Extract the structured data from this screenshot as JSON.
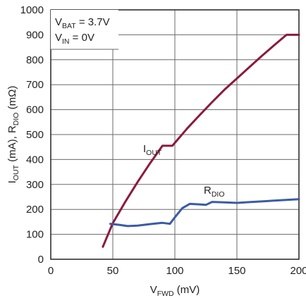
{
  "chart_data": {
    "type": "line",
    "xlabel": {
      "main": "V",
      "sub": "FWD",
      "unit": " (mV)"
    },
    "ylabel": {
      "p1": "I",
      "s1": "OUT",
      "p2": " (mA), R",
      "s2": "DIO",
      "p3": " (mΩ)"
    },
    "xlim": [
      0,
      200
    ],
    "ylim": [
      0,
      1000
    ],
    "xticks": [
      0,
      50,
      100,
      150,
      200
    ],
    "yticks": [
      0,
      100,
      200,
      300,
      400,
      500,
      600,
      700,
      800,
      900,
      1000
    ],
    "grid": true,
    "conditions": [
      {
        "main": "V",
        "sub": "BAT",
        "rest": " = 3.7V"
      },
      {
        "main": "V",
        "sub": "IN",
        "rest": " = 0V"
      }
    ],
    "series": [
      {
        "label_main": "I",
        "label_sub": "OUT",
        "color": "#8b1a3c",
        "x": [
          42,
          50,
          60,
          70,
          80,
          90,
          98,
          110,
          120,
          130,
          140,
          150,
          160,
          170,
          180,
          190,
          200
        ],
        "y": [
          50,
          145,
          230,
          310,
          385,
          455,
          455,
          525,
          578,
          630,
          680,
          725,
          770,
          815,
          858,
          900,
          900
        ]
      },
      {
        "label_main": "R",
        "label_sub": "DIO",
        "color": "#3b5ba5",
        "x": [
          48,
          55,
          62,
          70,
          80,
          90,
          96,
          100,
          106,
          112,
          120,
          125,
          130,
          140,
          150,
          160,
          170,
          180,
          190,
          200
        ],
        "y": [
          142,
          138,
          133,
          135,
          141,
          146,
          142,
          168,
          205,
          222,
          220,
          218,
          230,
          228,
          226,
          229,
          232,
          235,
          238,
          241
        ]
      }
    ]
  }
}
